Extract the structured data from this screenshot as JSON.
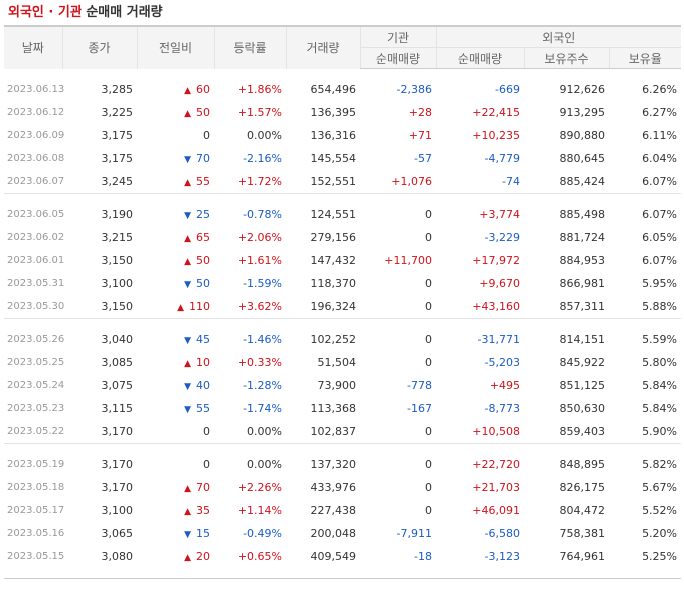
{
  "title": {
    "part1": "외국인 · 기관",
    "part2": "순매매 거래량"
  },
  "headers": {
    "date": "날짜",
    "close": "종가",
    "diff": "전일비",
    "rate": "등락률",
    "volume": "거래량",
    "institution": "기관",
    "foreign": "외국인",
    "inst_net": "순매매량",
    "foreign_net": "순매매량",
    "foreign_hold": "보유주수",
    "foreign_ratio": "보유율"
  },
  "colors": {
    "up": "#d0121b",
    "down": "#1a5bc4"
  },
  "icons": {
    "up": "triangle-up-icon",
    "down": "triangle-down-icon"
  },
  "groups": [
    [
      {
        "date": "2023.06.13",
        "close": "3,285",
        "dir": "up",
        "diff": "60",
        "rate": "+1.86%",
        "volume": "654,496",
        "inst": "-2,386",
        "fnet": "-669",
        "fhold": "912,626",
        "fratio": "6.26%"
      },
      {
        "date": "2023.06.12",
        "close": "3,225",
        "dir": "up",
        "diff": "50",
        "rate": "+1.57%",
        "volume": "136,395",
        "inst": "+28",
        "fnet": "+22,415",
        "fhold": "913,295",
        "fratio": "6.27%"
      },
      {
        "date": "2023.06.09",
        "close": "3,175",
        "dir": "flat",
        "diff": "0",
        "rate": "0.00%",
        "volume": "136,316",
        "inst": "+71",
        "fnet": "+10,235",
        "fhold": "890,880",
        "fratio": "6.11%"
      },
      {
        "date": "2023.06.08",
        "close": "3,175",
        "dir": "down",
        "diff": "70",
        "rate": "-2.16%",
        "volume": "145,554",
        "inst": "-57",
        "fnet": "-4,779",
        "fhold": "880,645",
        "fratio": "6.04%"
      },
      {
        "date": "2023.06.07",
        "close": "3,245",
        "dir": "up",
        "diff": "55",
        "rate": "+1.72%",
        "volume": "152,551",
        "inst": "+1,076",
        "fnet": "-74",
        "fhold": "885,424",
        "fratio": "6.07%"
      }
    ],
    [
      {
        "date": "2023.06.05",
        "close": "3,190",
        "dir": "down",
        "diff": "25",
        "rate": "-0.78%",
        "volume": "124,551",
        "inst": "0",
        "fnet": "+3,774",
        "fhold": "885,498",
        "fratio": "6.07%"
      },
      {
        "date": "2023.06.02",
        "close": "3,215",
        "dir": "up",
        "diff": "65",
        "rate": "+2.06%",
        "volume": "279,156",
        "inst": "0",
        "fnet": "-3,229",
        "fhold": "881,724",
        "fratio": "6.05%"
      },
      {
        "date": "2023.06.01",
        "close": "3,150",
        "dir": "up",
        "diff": "50",
        "rate": "+1.61%",
        "volume": "147,432",
        "inst": "+11,700",
        "fnet": "+17,972",
        "fhold": "884,953",
        "fratio": "6.07%"
      },
      {
        "date": "2023.05.31",
        "close": "3,100",
        "dir": "down",
        "diff": "50",
        "rate": "-1.59%",
        "volume": "118,370",
        "inst": "0",
        "fnet": "+9,670",
        "fhold": "866,981",
        "fratio": "5.95%"
      },
      {
        "date": "2023.05.30",
        "close": "3,150",
        "dir": "up",
        "diff": "110",
        "rate": "+3.62%",
        "volume": "196,324",
        "inst": "0",
        "fnet": "+43,160",
        "fhold": "857,311",
        "fratio": "5.88%"
      }
    ],
    [
      {
        "date": "2023.05.26",
        "close": "3,040",
        "dir": "down",
        "diff": "45",
        "rate": "-1.46%",
        "volume": "102,252",
        "inst": "0",
        "fnet": "-31,771",
        "fhold": "814,151",
        "fratio": "5.59%"
      },
      {
        "date": "2023.05.25",
        "close": "3,085",
        "dir": "up",
        "diff": "10",
        "rate": "+0.33%",
        "volume": "51,504",
        "inst": "0",
        "fnet": "-5,203",
        "fhold": "845,922",
        "fratio": "5.80%"
      },
      {
        "date": "2023.05.24",
        "close": "3,075",
        "dir": "down",
        "diff": "40",
        "rate": "-1.28%",
        "volume": "73,900",
        "inst": "-778",
        "fnet": "+495",
        "fhold": "851,125",
        "fratio": "5.84%"
      },
      {
        "date": "2023.05.23",
        "close": "3,115",
        "dir": "down",
        "diff": "55",
        "rate": "-1.74%",
        "volume": "113,368",
        "inst": "-167",
        "fnet": "-8,773",
        "fhold": "850,630",
        "fratio": "5.84%"
      },
      {
        "date": "2023.05.22",
        "close": "3,170",
        "dir": "flat",
        "diff": "0",
        "rate": "0.00%",
        "volume": "102,837",
        "inst": "0",
        "fnet": "+10,508",
        "fhold": "859,403",
        "fratio": "5.90%"
      }
    ],
    [
      {
        "date": "2023.05.19",
        "close": "3,170",
        "dir": "flat",
        "diff": "0",
        "rate": "0.00%",
        "volume": "137,320",
        "inst": "0",
        "fnet": "+22,720",
        "fhold": "848,895",
        "fratio": "5.82%"
      },
      {
        "date": "2023.05.18",
        "close": "3,170",
        "dir": "up",
        "diff": "70",
        "rate": "+2.26%",
        "volume": "433,976",
        "inst": "0",
        "fnet": "+21,703",
        "fhold": "826,175",
        "fratio": "5.67%"
      },
      {
        "date": "2023.05.17",
        "close": "3,100",
        "dir": "up",
        "diff": "35",
        "rate": "+1.14%",
        "volume": "227,438",
        "inst": "0",
        "fnet": "+46,091",
        "fhold": "804,472",
        "fratio": "5.52%"
      },
      {
        "date": "2023.05.16",
        "close": "3,065",
        "dir": "down",
        "diff": "15",
        "rate": "-0.49%",
        "volume": "200,048",
        "inst": "-7,911",
        "fnet": "-6,580",
        "fhold": "758,381",
        "fratio": "5.20%"
      },
      {
        "date": "2023.05.15",
        "close": "3,080",
        "dir": "up",
        "diff": "20",
        "rate": "+0.65%",
        "volume": "409,549",
        "inst": "-18",
        "fnet": "-3,123",
        "fhold": "764,961",
        "fratio": "5.25%"
      }
    ]
  ]
}
